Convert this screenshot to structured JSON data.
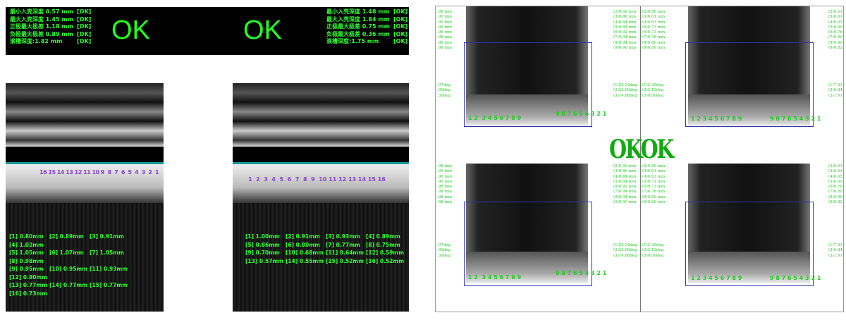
{
  "left_panel": {
    "left_results": [
      {
        "label": "最小入壳深度 0.57 mm",
        "status": "[OK]"
      },
      {
        "label": "最大入壳深度 1.45 mm",
        "status": "[OK]"
      },
      {
        "label": "正极最大极差 1.18 mm",
        "status": "[OK]"
      },
      {
        "label": "负极最大极差 0.89 mm",
        "status": "[OK]"
      },
      {
        "label": "滚槽深度:1.82 mm",
        "status": "[OK]"
      }
    ],
    "right_results": [
      {
        "label": "最小入壳深度 1.48 mm",
        "status": "[OK]"
      },
      {
        "label": "最大入壳深度 1.84 mm",
        "status": "[OK]"
      },
      {
        "label": "正极最大极差 0.75 mm",
        "status": "[OK]"
      },
      {
        "label": "负极最大极差 0.36 mm",
        "status": "[OK]"
      },
      {
        "label": "滚槽深度:1.75 mm",
        "status": "[OK]"
      }
    ],
    "verdict_left": "OK",
    "verdict_right": "OK",
    "left_index_labels": "16 15 14 13 12 11 10 9  8  7  6  5  4  3  2  1",
    "right_index_labels": "1  2  3  4  5  6  7  8  9  10 11 12 13 14 15 16",
    "left_measurements": [
      "[1] 0.80mm",
      "[2] 0.89mm",
      "[3] 0.91mm",
      "[4] 1.02mm",
      "[5] 1.05mm",
      "[6] 1.07mm",
      "[7] 1.05mm",
      "[8] 0.98mm",
      "[9] 0.95mm",
      "[10] 0.95mm",
      "[11] 0.93mm",
      "[12] 0.80mm",
      "[13] 0.77mm",
      "[14] 0.77mm",
      "[15] 0.77mm",
      "[16] 0.73mm"
    ],
    "right_measurements": [
      "[1] 1.00mm",
      "[2] 0.91mm",
      "[3] 0.93mm",
      "[4] 0.89mm",
      "[5] 0.86mm",
      "[6] 0.80mm",
      "[7] 0.77mm",
      "[8] 0.75mm",
      "[9] 0.70mm",
      "[10] 0.68mm",
      "[11] 0.64mm",
      "[12] 0.59mm",
      "[13] 0.57mm",
      "[14] 0.55mm",
      "[15] 0.52mm",
      "[16] 0.52mm"
    ]
  },
  "right_panel": {
    "verdict_left": "OK",
    "verdict_right": "OK",
    "edge_mm": ".98 mm\n.90 mm\n.90 mm\n.90 mm\n.96 mm\n.98 mm\n.98 mm\n.98 mm",
    "edge_deg": ".07deg\n.00deg\n.30deg",
    "col_a_mm": "(2)0.92 mm\n(3)0.86 mm\n(4)0.84 mm\n(5)0.84 mm\n(6)0.92 mm\n(7)0.94 mm\n(8)0.94 mm\n(9)0.90 mm",
    "col_a_deg": "(1)24.34deg\n(2)22.89deg\n(3)14.68deg",
    "col_b_mm": "(2)0.86 mm\n(3)0.61 mm\n(4)0.63 mm\n(5)0.71 mm\n(6)0.73 mm\n(7)0.76 mm\n(8)0.80 mm\n(9)0.80 mm",
    "col_b_deg": "(1)2.49deg\n(2)2.12deg\n(3)0.00deg",
    "col_c_mm": "(2)0.61\n(3)0.61\n(4)0.65\n(5)0.69\n(6)0.76\n(7)0.80\n(8)0.80\n(9)0.82",
    "col_c_deg": "(1)7.43\n(2)6.84\n(3)1.91",
    "labels_left_a": "1 2  3 4 5 6 7 8 9",
    "labels_left_b": "9 8 7 6 5 4 3 2 1",
    "labels_right_a": "1 2 3 4 5 6 7 8 9",
    "labels_right_b": "9 8 7 6 5 4 3 2 1"
  }
}
